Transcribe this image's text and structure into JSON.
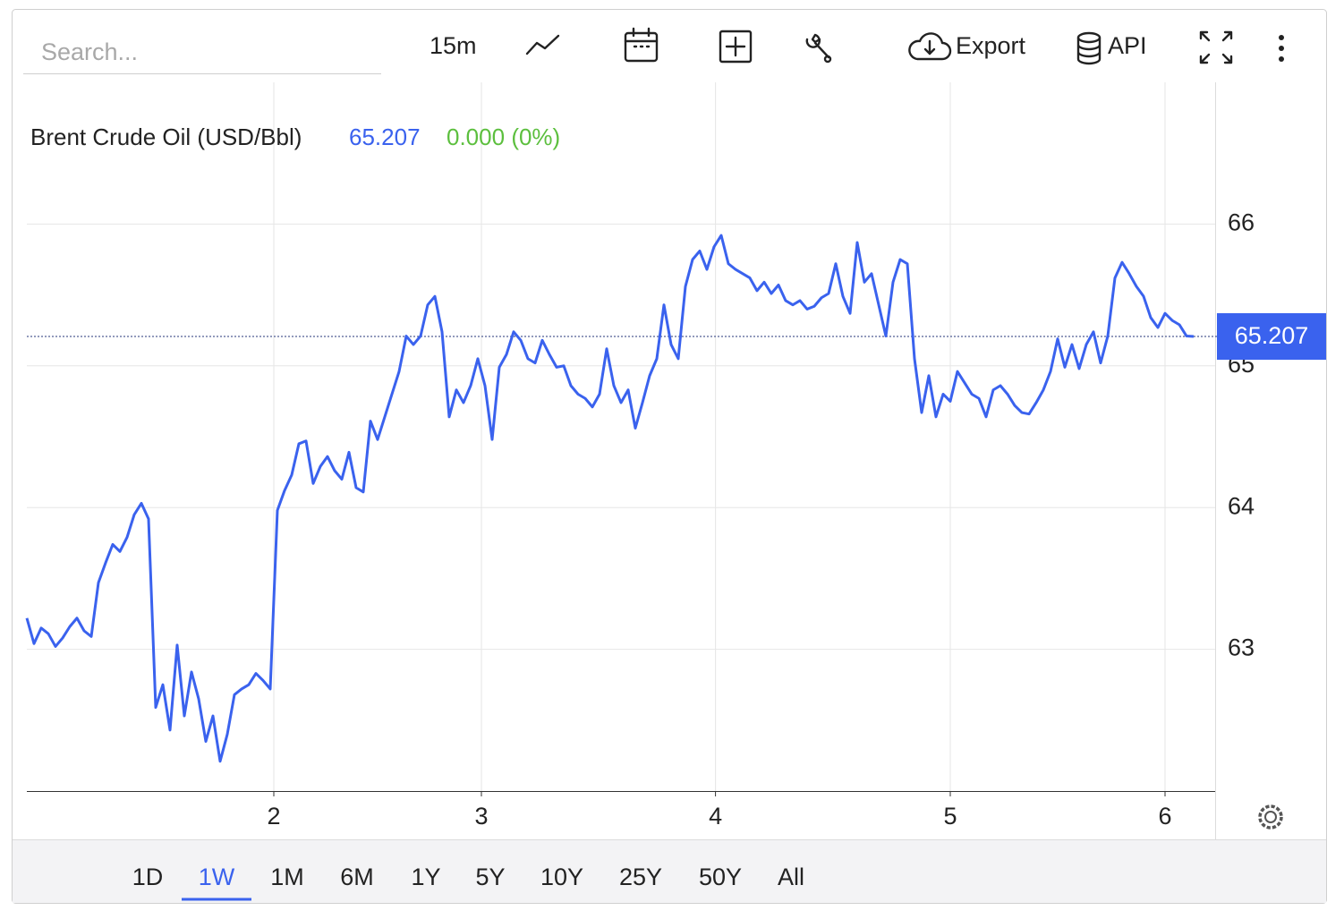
{
  "toolbar": {
    "search_placeholder": "Search...",
    "interval": "15m",
    "export": "Export",
    "api": "API"
  },
  "chart_data": {
    "type": "line",
    "last_value": 65.207,
    "change": "0.000",
    "change_pct": "(0%)",
    "change_color": "#5cbf3e",
    "series": [
      {
        "name": "Brent Crude Oil (USD/Bbl)",
        "color": "#3a62ee",
        "values": [
          63.22,
          63.04,
          63.15,
          63.11,
          63.02,
          63.08,
          63.16,
          63.22,
          63.13,
          63.09,
          63.47,
          63.61,
          63.74,
          63.69,
          63.79,
          63.95,
          64.03,
          63.92,
          62.59,
          62.75,
          62.43,
          63.03,
          62.53,
          62.84,
          62.65,
          62.35,
          62.53,
          62.21,
          62.4,
          62.68,
          62.72,
          62.75,
          62.83,
          62.78,
          62.72,
          63.98,
          64.12,
          64.23,
          64.45,
          64.47,
          64.17,
          64.29,
          64.36,
          64.26,
          64.2,
          64.39,
          64.14,
          64.11,
          64.61,
          64.48,
          64.64,
          64.8,
          64.96,
          65.21,
          65.15,
          65.21,
          65.43,
          65.49,
          65.24,
          64.64,
          64.83,
          64.74,
          64.86,
          65.05,
          64.86,
          64.48,
          64.99,
          65.08,
          65.24,
          65.18,
          65.05,
          65.02,
          65.18,
          65.08,
          64.99,
          65.0,
          64.86,
          64.8,
          64.77,
          64.71,
          64.8,
          65.12,
          64.86,
          64.74,
          64.83,
          64.56,
          64.74,
          64.93,
          65.05,
          65.43,
          65.15,
          65.05,
          65.56,
          65.75,
          65.81,
          65.68,
          65.84,
          65.92,
          65.72,
          65.68,
          65.65,
          65.62,
          65.53,
          65.59,
          65.51,
          65.57,
          65.46,
          65.43,
          65.46,
          65.4,
          65.42,
          65.48,
          65.51,
          65.72,
          65.49,
          65.37,
          65.87,
          65.59,
          65.65,
          65.43,
          65.21,
          65.59,
          65.75,
          65.72,
          65.05,
          64.67,
          64.93,
          64.64,
          64.8,
          64.75,
          64.96,
          64.88,
          64.8,
          64.77,
          64.64,
          64.83,
          64.86,
          64.8,
          64.72,
          64.67,
          64.66,
          64.74,
          64.83,
          64.96,
          65.19,
          64.99,
          65.15,
          64.98,
          65.15,
          65.24,
          65.02,
          65.21,
          65.62,
          65.73,
          65.65,
          65.56,
          65.49,
          65.34,
          65.27,
          65.37,
          65.32,
          65.29,
          65.21,
          65.207
        ]
      }
    ],
    "xlim": [
      0,
      166
    ],
    "xticks": [
      {
        "value": 34.5,
        "label": "2"
      },
      {
        "value": 63.5,
        "label": "3"
      },
      {
        "value": 96.2,
        "label": "4"
      },
      {
        "value": 129,
        "label": "5"
      },
      {
        "value": 159,
        "label": "6"
      }
    ],
    "ylim": [
      62,
      67
    ],
    "yticks": [
      63,
      64,
      65,
      66
    ],
    "grid": true
  },
  "range_buttons": {
    "items": [
      "1D",
      "1W",
      "1M",
      "6M",
      "1Y",
      "5Y",
      "10Y",
      "25Y",
      "50Y",
      "All"
    ],
    "active": 1
  }
}
